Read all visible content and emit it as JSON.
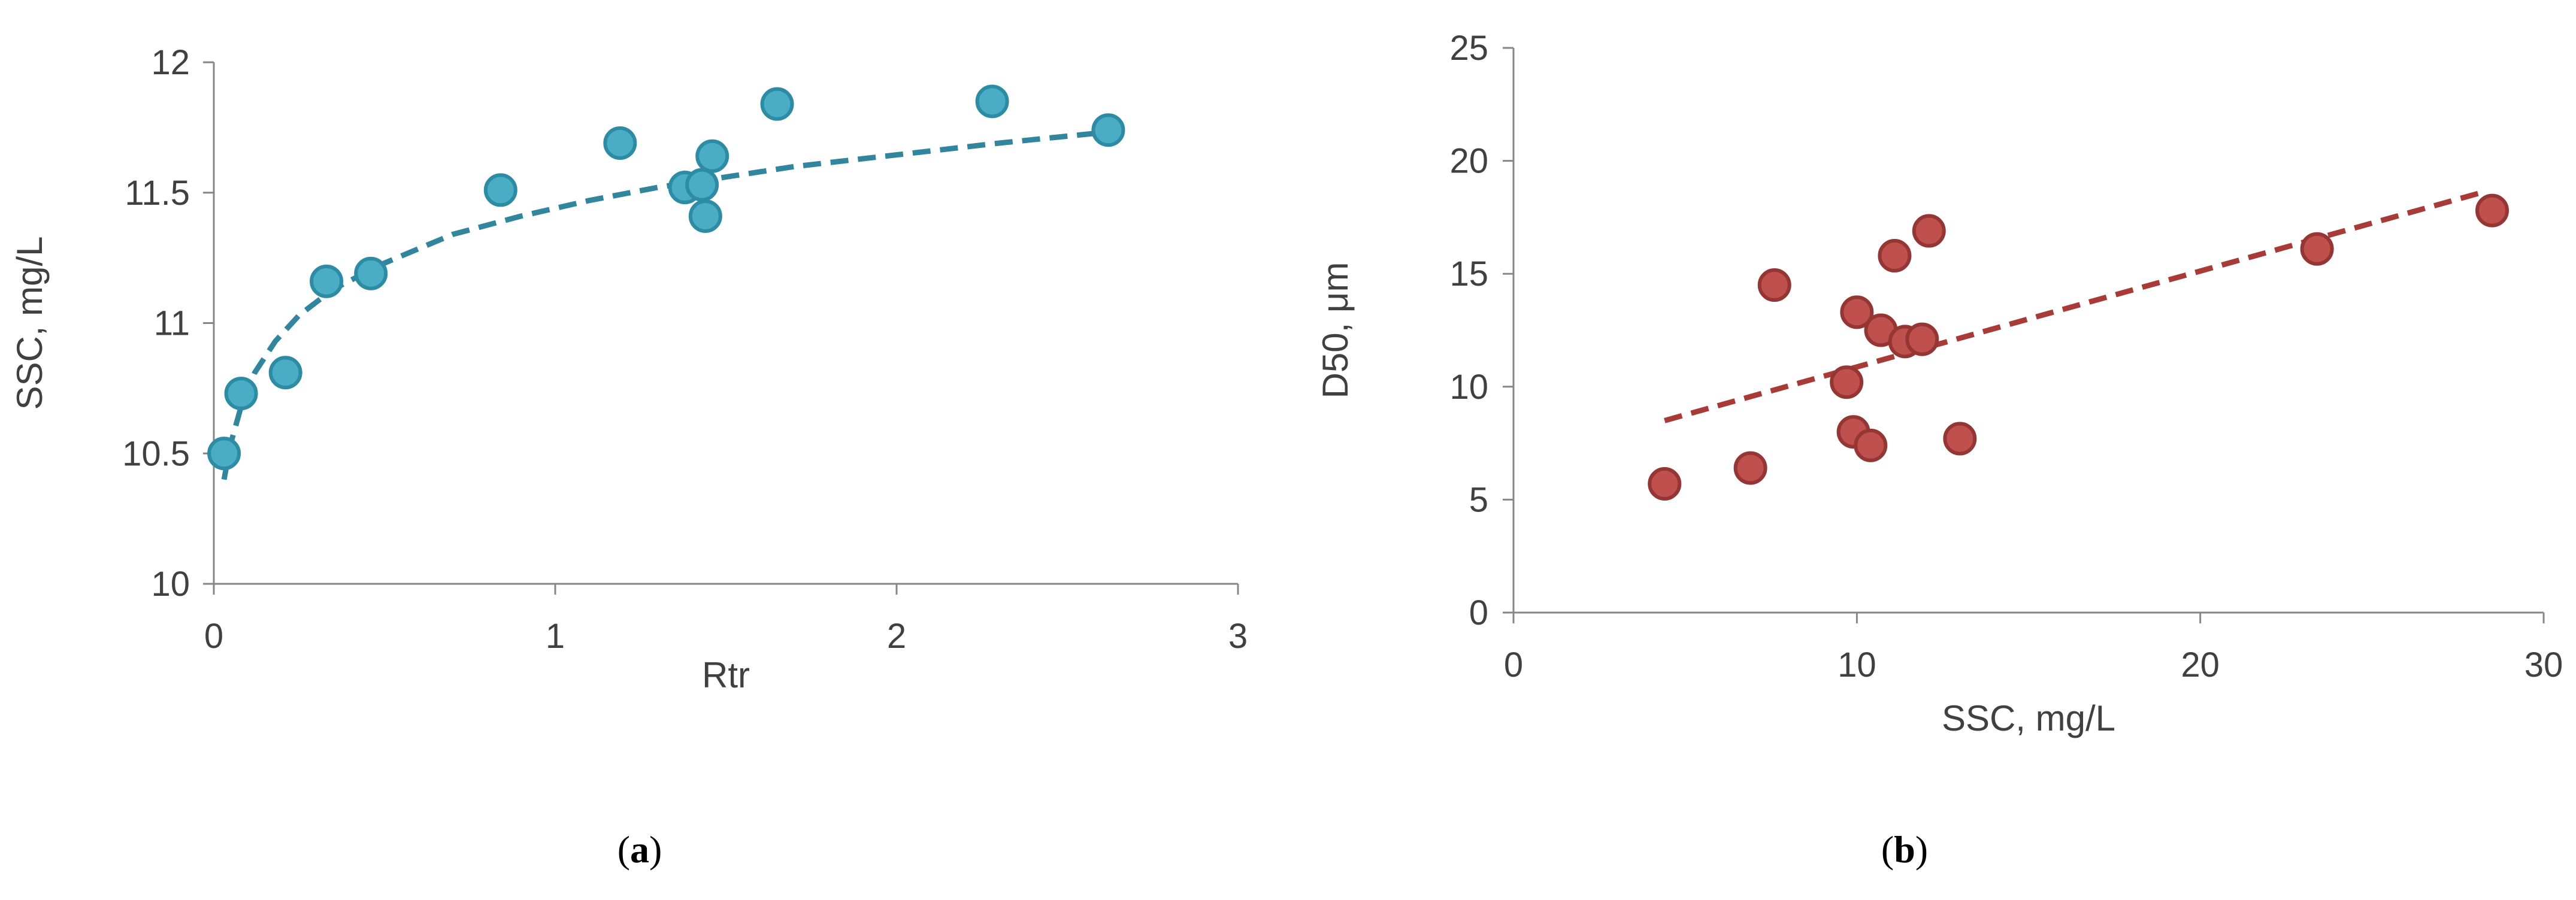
{
  "chart_data": [
    {
      "type": "scatter",
      "caption": "a",
      "xlabel": "Rtr",
      "ylabel": "SSC, mg/L",
      "xlim": [
        0,
        3
      ],
      "ylim": [
        10,
        12
      ],
      "xticks": [
        0,
        1,
        2,
        3
      ],
      "yticks": [
        10,
        10.5,
        11,
        11.5,
        12
      ],
      "ytick_labels": [
        "10",
        "10.5",
        "11",
        "11.5",
        "12"
      ],
      "grid": false,
      "marker_color": "#4BACC6",
      "marker_edge": "#2E8BA4",
      "trend_color": "#31859C",
      "trendline": {
        "type": "logarithmic",
        "x": [
          0.03,
          0.05,
          0.08,
          0.12,
          0.18,
          0.25,
          0.35,
          0.5,
          0.7,
          0.9,
          1.1,
          1.3,
          1.5,
          1.7,
          1.9,
          2.1,
          2.3,
          2.6
        ],
        "y": [
          10.4,
          10.54,
          10.68,
          10.81,
          10.93,
          11.03,
          11.13,
          11.23,
          11.34,
          11.41,
          11.47,
          11.52,
          11.56,
          11.6,
          11.63,
          11.66,
          11.69,
          11.73
        ]
      },
      "points": {
        "x": [
          0.03,
          0.08,
          0.21,
          0.33,
          0.46,
          0.84,
          1.19,
          1.38,
          1.43,
          1.44,
          1.46,
          1.65,
          2.28,
          2.62
        ],
        "y": [
          10.5,
          10.73,
          10.81,
          11.16,
          11.19,
          11.51,
          11.69,
          11.52,
          11.53,
          11.41,
          11.64,
          11.84,
          11.85,
          11.74
        ]
      }
    },
    {
      "type": "scatter",
      "caption": "b",
      "xlabel": "SSC, mg/L",
      "ylabel": "D50, μm",
      "xlim": [
        0,
        30
      ],
      "ylim": [
        0,
        25
      ],
      "xticks": [
        0,
        10,
        20,
        30
      ],
      "yticks": [
        0,
        5,
        10,
        15,
        20,
        25
      ],
      "ytick_labels": [
        "0",
        "5",
        "10",
        "15",
        "20",
        "25"
      ],
      "grid": false,
      "marker_color": "#C0504D",
      "marker_edge": "#943634",
      "trend_color": "#A83B38",
      "trendline": {
        "type": "linear",
        "x": [
          4.4,
          28.2
        ],
        "y": [
          8.5,
          18.6
        ]
      },
      "points": {
        "x": [
          4.4,
          6.9,
          7.6,
          9.7,
          9.9,
          10.0,
          10.4,
          10.7,
          11.1,
          11.4,
          11.9,
          12.1,
          13.0,
          23.4,
          28.5
        ],
        "y": [
          5.7,
          6.4,
          14.5,
          10.2,
          8.0,
          13.3,
          7.4,
          12.5,
          15.8,
          12.0,
          12.1,
          16.9,
          7.7,
          16.1,
          17.8
        ]
      }
    }
  ]
}
